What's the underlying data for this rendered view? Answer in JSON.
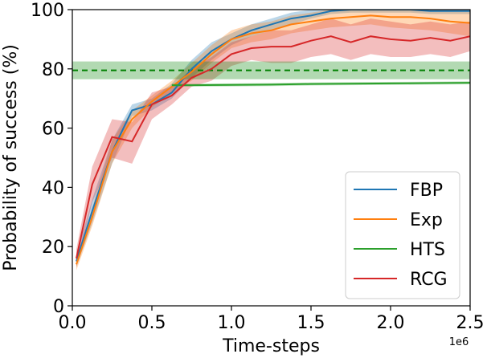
{
  "chart_data": {
    "type": "line",
    "xlabel": "Time-steps",
    "ylabel": "Probability of success (%)",
    "x_offset_label": "1e6",
    "xlim": [
      0,
      2.5
    ],
    "ylim": [
      0,
      100
    ],
    "x_ticks": [
      0.0,
      0.5,
      1.0,
      1.5,
      2.0,
      2.5
    ],
    "x_tick_labels": [
      "0.0",
      "0.5",
      "1.0",
      "1.5",
      "2.0",
      "2.5"
    ],
    "y_ticks": [
      0,
      20,
      40,
      60,
      80,
      100
    ],
    "y_tick_labels": [
      "0",
      "20",
      "40",
      "60",
      "80",
      "100"
    ],
    "legend_position": "lower-right",
    "series": [
      {
        "name": "FBP",
        "color": "#1f77b4",
        "x": [
          0.025,
          0.125,
          0.25,
          0.375,
          0.5,
          0.625,
          0.75,
          0.875,
          1.0,
          1.125,
          1.25,
          1.375,
          1.5,
          1.625,
          1.75,
          1.875,
          2.0,
          2.125,
          2.25,
          2.375,
          2.5
        ],
        "y": [
          15,
          32,
          52,
          66,
          68,
          72,
          80,
          86,
          90,
          93,
          95,
          97,
          98,
          99.5,
          100,
          100,
          100,
          100,
          99.5,
          99.5,
          99.5
        ],
        "lower": [
          13,
          28,
          48,
          64,
          66,
          70,
          77,
          83,
          88,
          91,
          93,
          95,
          97,
          98.5,
          99,
          99,
          99,
          99,
          98.5,
          98.5,
          98.5
        ],
        "upper": [
          17,
          36,
          56,
          68,
          70,
          75,
          83,
          89,
          92,
          95,
          97,
          99,
          100,
          100,
          100,
          100,
          100,
          100,
          100,
          100,
          100
        ]
      },
      {
        "name": "Exp",
        "color": "#ff7f0e",
        "x": [
          0.025,
          0.125,
          0.25,
          0.375,
          0.5,
          0.625,
          0.75,
          0.875,
          1.0,
          1.125,
          1.25,
          1.375,
          1.5,
          1.625,
          1.75,
          1.875,
          2.0,
          2.125,
          2.25,
          2.375,
          2.5
        ],
        "y": [
          14,
          30,
          52,
          63,
          69,
          74,
          79,
          85,
          90,
          92,
          93,
          95,
          96,
          97,
          97.5,
          98,
          97.5,
          97.5,
          97,
          96,
          95.5
        ],
        "lower": [
          12,
          27,
          48,
          60,
          67,
          72,
          76,
          82,
          87,
          89,
          90,
          92,
          93,
          94,
          94.5,
          95,
          94,
          93.5,
          93,
          92,
          91
        ],
        "upper": [
          16,
          33,
          56,
          66,
          71,
          76,
          82,
          88,
          93,
          95,
          96,
          98,
          99,
          100,
          100,
          100,
          100,
          100,
          100,
          100,
          100
        ]
      },
      {
        "name": "HTS",
        "color": "#2ca02c",
        "x": [
          0.625,
          0.75,
          1.0,
          1.25,
          1.5,
          1.75,
          2.0,
          2.25,
          2.5
        ],
        "y": [
          74.5,
          74.5,
          74.6,
          74.7,
          74.9,
          75.0,
          75.1,
          75.2,
          75.3
        ],
        "lower": [
          74,
          74,
          74.1,
          74.2,
          74.4,
          74.5,
          74.6,
          74.7,
          74.8
        ],
        "upper": [
          75,
          75,
          75.1,
          75.2,
          75.4,
          75.5,
          75.6,
          75.7,
          75.8
        ]
      },
      {
        "name": "RCG",
        "color": "#d62728",
        "x": [
          0.025,
          0.125,
          0.25,
          0.375,
          0.5,
          0.625,
          0.75,
          0.875,
          1.0,
          1.125,
          1.25,
          1.375,
          1.5,
          1.625,
          1.75,
          1.875,
          2.0,
          2.125,
          2.25,
          2.375,
          2.5
        ],
        "y": [
          16,
          41,
          57,
          55.5,
          68,
          71,
          77,
          80,
          85,
          87,
          87.5,
          87.5,
          89.5,
          91,
          89,
          91,
          90,
          89.5,
          90.5,
          89.5,
          91
        ],
        "lower": [
          13,
          35,
          50,
          48,
          63,
          68,
          74,
          76,
          81,
          83,
          82,
          82,
          84,
          85,
          83,
          85,
          84,
          84,
          85,
          84,
          86
        ],
        "upper": [
          19,
          47,
          63,
          62,
          72,
          74,
          80,
          84,
          89,
          91,
          93,
          93,
          95,
          97,
          95,
          97,
          96,
          95,
          96,
          95,
          96
        ]
      }
    ],
    "reference_line": {
      "name": "HTS-reference",
      "color": "#008000",
      "style": "dashed",
      "y": 79.5,
      "band": [
        76.5,
        82.5
      ]
    }
  }
}
